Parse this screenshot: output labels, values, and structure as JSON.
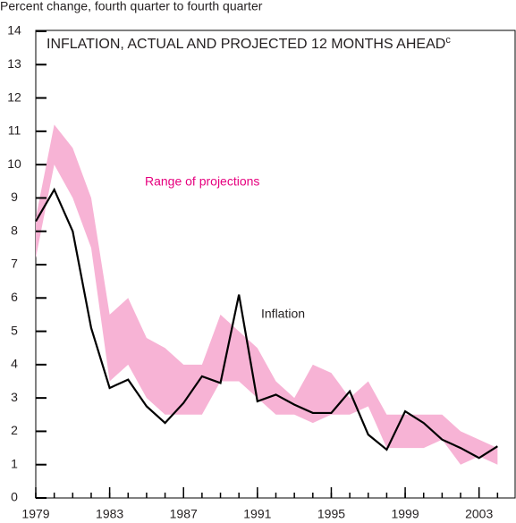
{
  "chart_data": {
    "type": "line",
    "axis_note": "Percent change, fourth quarter to fourth quarter",
    "title": "INFLATION, ACTUAL AND PROJECTED 12 MONTHS AHEAD",
    "title_superscript": "c",
    "x": [
      1979,
      1980,
      1981,
      1982,
      1983,
      1984,
      1985,
      1986,
      1987,
      1988,
      1989,
      1990,
      1991,
      1992,
      1993,
      1994,
      1995,
      1996,
      1997,
      1998,
      1999,
      2000,
      2001,
      2002,
      2003,
      2004
    ],
    "range": {
      "name": "Range of projections",
      "color": "#f7b3d5",
      "low": [
        7.2,
        10.0,
        9.0,
        7.5,
        3.5,
        4.0,
        3.0,
        2.5,
        2.5,
        2.5,
        3.5,
        3.5,
        3.0,
        2.5,
        2.5,
        2.25,
        2.5,
        2.5,
        2.75,
        1.5,
        1.5,
        1.5,
        1.75,
        1.0,
        1.25,
        1.0
      ],
      "high": [
        8.4,
        11.2,
        10.5,
        9.0,
        5.5,
        6.0,
        4.8,
        4.5,
        4.0,
        4.0,
        5.5,
        5.0,
        4.5,
        3.5,
        3.0,
        4.0,
        3.75,
        3.0,
        3.5,
        2.5,
        2.5,
        2.5,
        2.5,
        2.0,
        1.75,
        1.5
      ]
    },
    "range_label_color": "#e6007e",
    "series": [
      {
        "name": "Inflation",
        "color": "#000000",
        "values": [
          8.3,
          9.25,
          8.0,
          5.1,
          3.3,
          3.55,
          2.75,
          2.25,
          2.85,
          3.65,
          3.45,
          6.1,
          2.9,
          3.1,
          2.8,
          2.55,
          2.55,
          3.2,
          1.9,
          1.45,
          2.6,
          2.25,
          1.75,
          1.5,
          1.2,
          1.55
        ]
      }
    ],
    "xlim": [
      1979,
      2005
    ],
    "xticks": [
      1979,
      1983,
      1987,
      1991,
      1995,
      1999,
      2003
    ],
    "ylim": [
      0,
      14
    ],
    "yticks": [
      0,
      1,
      2,
      3,
      4,
      5,
      6,
      7,
      8,
      9,
      10,
      11,
      12,
      13,
      14
    ]
  }
}
